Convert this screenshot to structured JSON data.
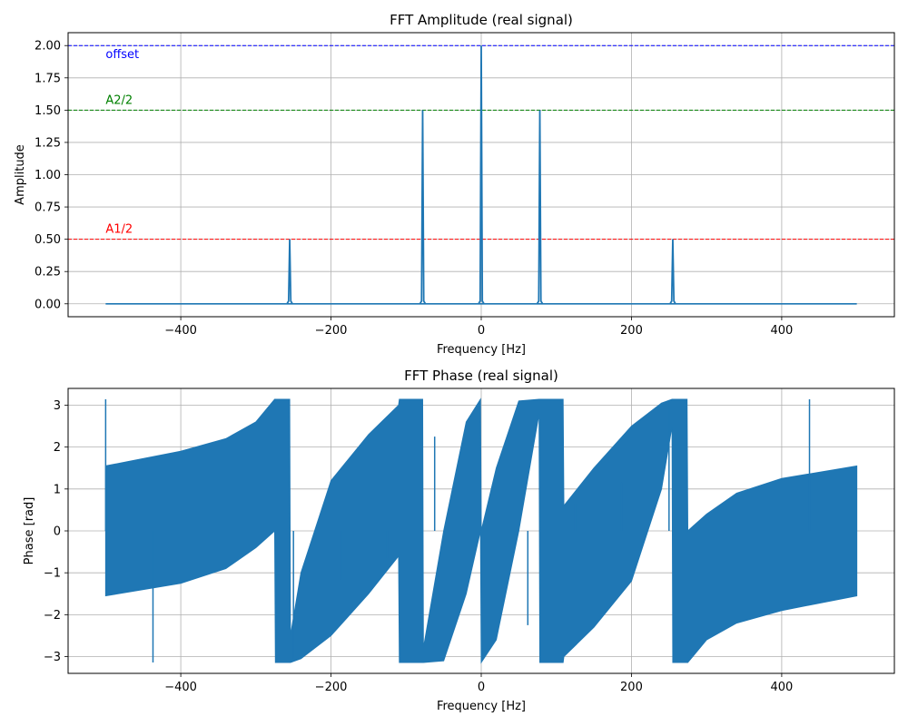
{
  "colors": {
    "series": "#1f77b4",
    "offset_line": "#0000ff",
    "a2_line": "#008000",
    "a1_line": "#ff0000",
    "grid": "#b0b0b0"
  },
  "chart_data": [
    {
      "type": "line",
      "title": "FFT Amplitude (real signal)",
      "xlabel": "Frequency [Hz]",
      "ylabel": "Amplitude",
      "xlim": [
        -550,
        550
      ],
      "ylim": [
        -0.1,
        2.1
      ],
      "xticks": [
        -400,
        -200,
        0,
        200,
        400
      ],
      "xtick_labels": [
        "−400",
        "−200",
        "0",
        "200",
        "400"
      ],
      "yticks": [
        0,
        0.25,
        0.5,
        0.75,
        1.0,
        1.25,
        1.5,
        1.75,
        2.0
      ],
      "ytick_labels": [
        "0.00",
        "0.25",
        "0.50",
        "0.75",
        "1.00",
        "1.25",
        "1.50",
        "1.75",
        "2.00"
      ],
      "grid": true,
      "reference_lines": [
        {
          "label": "offset",
          "y": 2.0,
          "style": "dashed",
          "color": "#0000ff"
        },
        {
          "label": "A2/2",
          "y": 1.5,
          "style": "dashed",
          "color": "#008000"
        },
        {
          "label": "A1/2",
          "y": 0.5,
          "style": "dashed",
          "color": "#ff0000"
        }
      ],
      "series": [
        {
          "x_range": [
            -500,
            500
          ],
          "baseline": 0.0,
          "peaks": [
            {
              "x": -255,
              "y": 0.5
            },
            {
              "x": -78,
              "y": 1.5
            },
            {
              "x": 0,
              "y": 2.0
            },
            {
              "x": 78,
              "y": 1.5
            },
            {
              "x": 255,
              "y": 0.5
            }
          ]
        }
      ]
    },
    {
      "type": "line",
      "title": "FFT Phase (real signal)",
      "xlabel": "Frequency [Hz]",
      "ylabel": "Phase [rad]",
      "xlim": [
        -550,
        550
      ],
      "ylim": [
        -3.4,
        3.4
      ],
      "xticks": [
        -400,
        -200,
        0,
        200,
        400
      ],
      "xtick_labels": [
        "−400",
        "−200",
        "0",
        "200",
        "400"
      ],
      "yticks": [
        -3,
        -2,
        -1,
        0,
        1,
        2,
        3
      ],
      "ytick_labels": [
        "−3",
        "−2",
        "−1",
        "0",
        "1",
        "2",
        "3"
      ],
      "grid": true,
      "series": [
        {
          "x_range": [
            -500,
            500
          ],
          "envelope": [
            {
              "x": -500,
              "top": 1.55,
              "bottom": -1.55
            },
            {
              "x": -400,
              "top": 1.9,
              "bottom": -1.25
            },
            {
              "x": -340,
              "top": 2.2,
              "bottom": -0.9
            },
            {
              "x": -300,
              "top": 2.6,
              "bottom": -0.4
            },
            {
              "x": -275,
              "top": 3.14,
              "bottom": 0.0
            },
            {
              "x": -274,
              "top": 3.14,
              "bottom": -3.14
            },
            {
              "x": -255,
              "top": 3.14,
              "bottom": -3.14
            },
            {
              "x": -254,
              "top": -2.5,
              "bottom": -3.14
            },
            {
              "x": -240,
              "top": -1.0,
              "bottom": -3.05
            },
            {
              "x": -200,
              "top": 1.2,
              "bottom": -2.5
            },
            {
              "x": -150,
              "top": 2.3,
              "bottom": -1.5
            },
            {
              "x": -110,
              "top": 3.0,
              "bottom": -0.6
            },
            {
              "x": -109,
              "top": 3.14,
              "bottom": -3.14
            },
            {
              "x": -78,
              "top": 3.14,
              "bottom": -3.14
            },
            {
              "x": -77,
              "top": -2.8,
              "bottom": -3.14
            },
            {
              "x": -50,
              "top": 0.0,
              "bottom": -3.1
            },
            {
              "x": -20,
              "top": 2.6,
              "bottom": -1.5
            },
            {
              "x": -1,
              "top": 3.14,
              "bottom": 0.0
            },
            {
              "x": 0,
              "top": 0.0,
              "bottom": -3.14
            },
            {
              "x": 20,
              "top": 1.5,
              "bottom": -2.6
            },
            {
              "x": 50,
              "top": 3.1,
              "bottom": 0.0
            },
            {
              "x": 77,
              "top": 3.14,
              "bottom": 2.8
            },
            {
              "x": 78,
              "top": 3.14,
              "bottom": -3.14
            },
            {
              "x": 109,
              "top": 3.14,
              "bottom": -3.14
            },
            {
              "x": 110,
              "top": 0.6,
              "bottom": -3.0
            },
            {
              "x": 150,
              "top": 1.5,
              "bottom": -2.3
            },
            {
              "x": 200,
              "top": 2.5,
              "bottom": -1.2
            },
            {
              "x": 240,
              "top": 3.05,
              "bottom": 1.0
            },
            {
              "x": 254,
              "top": 3.14,
              "bottom": 2.5
            },
            {
              "x": 255,
              "top": 3.14,
              "bottom": -3.14
            },
            {
              "x": 274,
              "top": 3.14,
              "bottom": -3.14
            },
            {
              "x": 275,
              "top": 0.0,
              "bottom": -3.14
            },
            {
              "x": 300,
              "top": 0.4,
              "bottom": -2.6
            },
            {
              "x": 340,
              "top": 0.9,
              "bottom": -2.2
            },
            {
              "x": 400,
              "top": 1.25,
              "bottom": -1.9
            },
            {
              "x": 500,
              "top": 1.55,
              "bottom": -1.55
            }
          ],
          "spikes": [
            {
              "x": -500,
              "y": 3.14
            },
            {
              "x": -437,
              "y": -3.14
            },
            {
              "x": -250,
              "y": -3.05
            },
            {
              "x": -187,
              "y": -1.15
            },
            {
              "x": -125,
              "y": -0.65
            },
            {
              "x": -62,
              "y": 2.25
            },
            {
              "x": 62,
              "y": -2.25
            },
            {
              "x": 125,
              "y": 0.65
            },
            {
              "x": 187,
              "y": 1.15
            },
            {
              "x": 250,
              "y": 3.05
            },
            {
              "x": 437,
              "y": 3.14
            }
          ]
        }
      ]
    }
  ]
}
